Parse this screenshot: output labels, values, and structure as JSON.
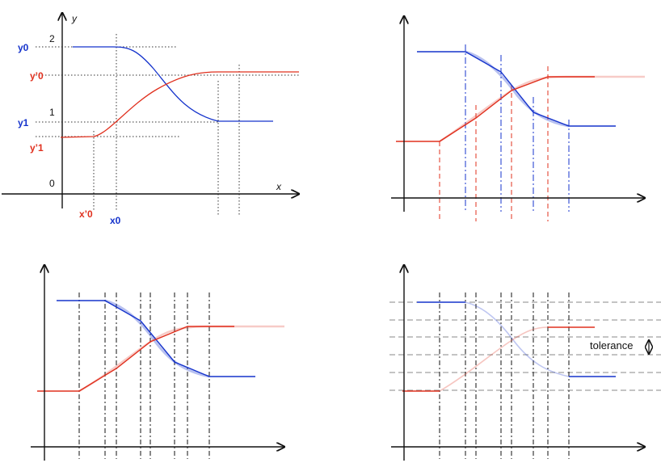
{
  "colors": {
    "blue": "#1533cc",
    "red": "#e0301e",
    "axis": "#111111",
    "guide": "#888888"
  },
  "panel1": {
    "axis_x": "x",
    "axis_y": "y",
    "tick_0": "0",
    "tick_1": "1",
    "tick_2": "2",
    "y0": "y0",
    "y0_prime": "y’0",
    "y1": "y1",
    "y1_prime": "y’1",
    "x0": "x0",
    "x0_prime": "x’0"
  },
  "panel4": {
    "tolerance": "tolerance"
  }
}
